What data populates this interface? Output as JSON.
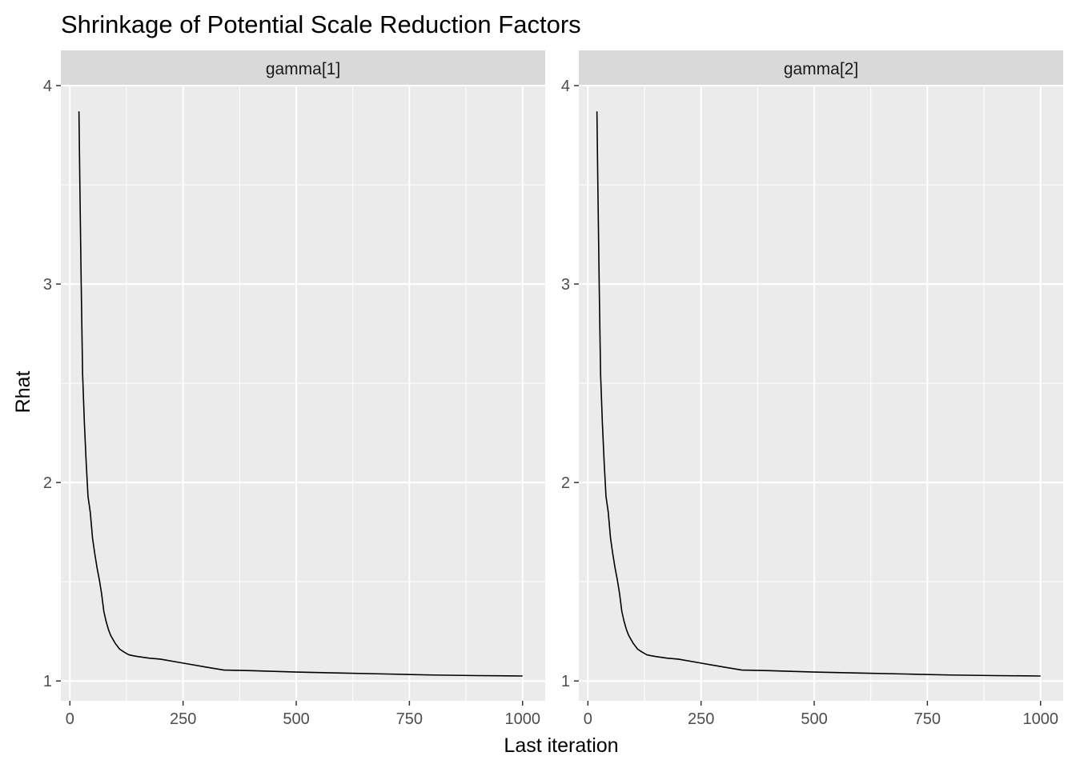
{
  "chart_data": {
    "type": "line",
    "title": "Shrinkage of Potential Scale Reduction Factors",
    "xlabel": "Last iteration",
    "ylabel": "Rhat",
    "xlim": [
      -20,
      1050
    ],
    "ylim": [
      0.9,
      4.0
    ],
    "xticks": [
      0,
      250,
      500,
      750,
      1000
    ],
    "xtick_labels": [
      "0",
      "250",
      "500",
      "750",
      "1000"
    ],
    "yticks": [
      1,
      2,
      3,
      4
    ],
    "ytick_labels": [
      "1",
      "2",
      "3",
      "4"
    ],
    "grid": true,
    "legend": "none",
    "panels": [
      {
        "label": "gamma[1]",
        "x": [
          20,
          22,
          25,
          28,
          32,
          36,
          40,
          45,
          50,
          55,
          60,
          65,
          70,
          75,
          80,
          85,
          90,
          100,
          110,
          120,
          130,
          140,
          150,
          175,
          200,
          250,
          300,
          340,
          400,
          500,
          600,
          700,
          800,
          900,
          1000
        ],
        "y": [
          3.87,
          3.5,
          3.0,
          2.55,
          2.3,
          2.1,
          1.93,
          1.85,
          1.72,
          1.64,
          1.57,
          1.51,
          1.44,
          1.35,
          1.3,
          1.26,
          1.23,
          1.19,
          1.16,
          1.145,
          1.132,
          1.127,
          1.123,
          1.115,
          1.11,
          1.09,
          1.07,
          1.055,
          1.052,
          1.045,
          1.04,
          1.035,
          1.03,
          1.027,
          1.025
        ]
      },
      {
        "label": "gamma[2]",
        "x": [
          20,
          22,
          25,
          28,
          32,
          36,
          40,
          45,
          50,
          55,
          60,
          65,
          70,
          75,
          80,
          85,
          90,
          100,
          110,
          120,
          130,
          140,
          150,
          175,
          200,
          250,
          300,
          340,
          400,
          500,
          600,
          700,
          800,
          900,
          1000
        ],
        "y": [
          3.87,
          3.5,
          3.0,
          2.55,
          2.3,
          2.1,
          1.93,
          1.85,
          1.72,
          1.64,
          1.57,
          1.51,
          1.44,
          1.35,
          1.3,
          1.26,
          1.23,
          1.19,
          1.16,
          1.145,
          1.132,
          1.127,
          1.123,
          1.115,
          1.11,
          1.09,
          1.07,
          1.055,
          1.052,
          1.045,
          1.04,
          1.035,
          1.03,
          1.027,
          1.025
        ]
      }
    ],
    "colors": {
      "panel_background": "#ebebeb",
      "strip_background": "#d9d9d9",
      "grid_line": "#ffffff",
      "series_line": "#000000",
      "tick_color": "#333333"
    }
  }
}
